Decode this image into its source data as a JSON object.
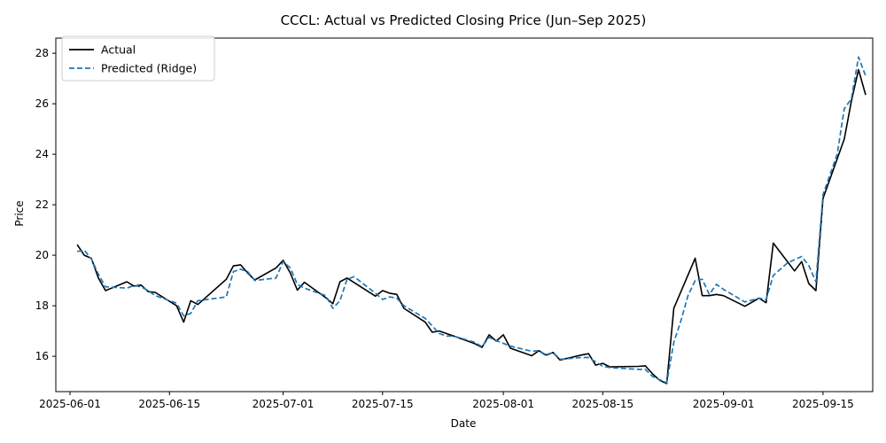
{
  "chart_data": {
    "type": "line",
    "title": "CCCL: Actual vs Predicted Closing Price (Jun–Sep 2025)",
    "xlabel": "Date",
    "ylabel": "Price",
    "xlim": [
      "2025-05-30",
      "2025-09-22"
    ],
    "ylim": [
      14.6,
      28.6
    ],
    "x_ticks": [
      "2025-06-01",
      "2025-06-15",
      "2025-07-01",
      "2025-07-15",
      "2025-08-01",
      "2025-08-15",
      "2025-09-01",
      "2025-09-15"
    ],
    "y_ticks": [
      16,
      18,
      20,
      22,
      24,
      26,
      28
    ],
    "grid": false,
    "legend_position": "top-left",
    "series": [
      {
        "name": "Actual",
        "color": "#000000",
        "style": "solid",
        "points": [
          [
            "2025-06-02",
            20.42
          ],
          [
            "2025-06-03",
            20.0
          ],
          [
            "2025-06-04",
            19.88
          ],
          [
            "2025-06-05",
            19.1
          ],
          [
            "2025-06-06",
            18.6
          ],
          [
            "2025-06-09",
            18.95
          ],
          [
            "2025-06-10",
            18.78
          ],
          [
            "2025-06-11",
            18.82
          ],
          [
            "2025-06-12",
            18.56
          ],
          [
            "2025-06-13",
            18.53
          ],
          [
            "2025-06-16",
            18.0
          ],
          [
            "2025-06-17",
            17.35
          ],
          [
            "2025-06-18",
            18.2
          ],
          [
            "2025-06-19",
            18.05
          ],
          [
            "2025-06-23",
            19.05
          ],
          [
            "2025-06-24",
            19.58
          ],
          [
            "2025-06-25",
            19.62
          ],
          [
            "2025-06-26",
            19.3
          ],
          [
            "2025-06-27",
            19.02
          ],
          [
            "2025-06-30",
            19.5
          ],
          [
            "2025-07-01",
            19.8
          ],
          [
            "2025-07-02",
            19.3
          ],
          [
            "2025-07-03",
            18.62
          ],
          [
            "2025-07-04",
            18.93
          ],
          [
            "2025-07-07",
            18.32
          ],
          [
            "2025-07-08",
            18.08
          ],
          [
            "2025-07-09",
            18.95
          ],
          [
            "2025-07-10",
            19.1
          ],
          [
            "2025-07-14",
            18.38
          ],
          [
            "2025-07-15",
            18.6
          ],
          [
            "2025-07-16",
            18.5
          ],
          [
            "2025-07-17",
            18.45
          ],
          [
            "2025-07-18",
            17.9
          ],
          [
            "2025-07-21",
            17.35
          ],
          [
            "2025-07-22",
            16.95
          ],
          [
            "2025-07-23",
            17.0
          ],
          [
            "2025-07-24",
            16.9
          ],
          [
            "2025-07-25",
            16.8
          ],
          [
            "2025-07-28",
            16.5
          ],
          [
            "2025-07-29",
            16.35
          ],
          [
            "2025-07-30",
            16.85
          ],
          [
            "2025-07-31",
            16.6
          ],
          [
            "2025-08-01",
            16.85
          ],
          [
            "2025-08-02",
            16.32
          ],
          [
            "2025-08-05",
            16.02
          ],
          [
            "2025-08-06",
            16.22
          ],
          [
            "2025-08-07",
            16.05
          ],
          [
            "2025-08-08",
            16.15
          ],
          [
            "2025-08-09",
            15.85
          ],
          [
            "2025-08-12",
            16.05
          ],
          [
            "2025-08-13",
            16.1
          ],
          [
            "2025-08-14",
            15.65
          ],
          [
            "2025-08-15",
            15.72
          ],
          [
            "2025-08-16",
            15.58
          ],
          [
            "2025-08-20",
            15.6
          ],
          [
            "2025-08-21",
            15.62
          ],
          [
            "2025-08-22",
            15.3
          ],
          [
            "2025-08-23",
            15.05
          ],
          [
            "2025-08-24",
            14.92
          ],
          [
            "2025-08-25",
            17.9
          ],
          [
            "2025-08-28",
            19.88
          ],
          [
            "2025-08-29",
            18.4
          ],
          [
            "2025-08-30",
            18.4
          ],
          [
            "2025-08-31",
            18.45
          ],
          [
            "2025-09-01",
            18.4
          ],
          [
            "2025-09-04",
            17.98
          ],
          [
            "2025-09-06",
            18.3
          ],
          [
            "2025-09-07",
            18.12
          ],
          [
            "2025-09-08",
            20.48
          ],
          [
            "2025-09-11",
            19.38
          ],
          [
            "2025-09-12",
            19.75
          ],
          [
            "2025-09-13",
            18.88
          ],
          [
            "2025-09-14",
            18.6
          ],
          [
            "2025-09-15",
            22.25
          ],
          [
            "2025-09-18",
            24.6
          ],
          [
            "2025-09-19",
            26.1
          ],
          [
            "2025-09-20",
            27.35
          ],
          [
            "2025-09-21",
            26.35
          ]
        ]
      },
      {
        "name": "Predicted (Ridge)",
        "color": "#1f77b4",
        "style": "dashed",
        "points": [
          [
            "2025-06-02",
            20.15
          ],
          [
            "2025-06-03",
            20.2
          ],
          [
            "2025-06-04",
            19.85
          ],
          [
            "2025-06-05",
            19.25
          ],
          [
            "2025-06-06",
            18.75
          ],
          [
            "2025-06-09",
            18.7
          ],
          [
            "2025-06-10",
            18.8
          ],
          [
            "2025-06-11",
            18.75
          ],
          [
            "2025-06-12",
            18.6
          ],
          [
            "2025-06-13",
            18.4
          ],
          [
            "2025-06-16",
            18.1
          ],
          [
            "2025-06-17",
            17.6
          ],
          [
            "2025-06-18",
            17.7
          ],
          [
            "2025-06-19",
            18.2
          ],
          [
            "2025-06-23",
            18.35
          ],
          [
            "2025-06-24",
            19.35
          ],
          [
            "2025-06-25",
            19.45
          ],
          [
            "2025-06-26",
            19.35
          ],
          [
            "2025-06-27",
            19.0
          ],
          [
            "2025-06-30",
            19.1
          ],
          [
            "2025-07-01",
            19.75
          ],
          [
            "2025-07-02",
            19.5
          ],
          [
            "2025-07-03",
            18.85
          ],
          [
            "2025-07-04",
            18.7
          ],
          [
            "2025-07-07",
            18.4
          ],
          [
            "2025-07-08",
            17.9
          ],
          [
            "2025-07-09",
            18.2
          ],
          [
            "2025-07-10",
            19.05
          ],
          [
            "2025-07-11",
            19.15
          ],
          [
            "2025-07-14",
            18.5
          ],
          [
            "2025-07-15",
            18.25
          ],
          [
            "2025-07-16",
            18.35
          ],
          [
            "2025-07-17",
            18.3
          ],
          [
            "2025-07-18",
            18.0
          ],
          [
            "2025-07-21",
            17.5
          ],
          [
            "2025-07-22",
            17.2
          ],
          [
            "2025-07-23",
            16.9
          ],
          [
            "2025-07-24",
            16.8
          ],
          [
            "2025-07-25",
            16.8
          ],
          [
            "2025-07-28",
            16.55
          ],
          [
            "2025-07-29",
            16.38
          ],
          [
            "2025-07-30",
            16.75
          ],
          [
            "2025-07-31",
            16.62
          ],
          [
            "2025-08-02",
            16.4
          ],
          [
            "2025-08-05",
            16.2
          ],
          [
            "2025-08-06",
            16.22
          ],
          [
            "2025-08-07",
            16.02
          ],
          [
            "2025-08-08",
            16.15
          ],
          [
            "2025-08-09",
            15.88
          ],
          [
            "2025-08-12",
            15.95
          ],
          [
            "2025-08-13",
            15.95
          ],
          [
            "2025-08-14",
            15.78
          ],
          [
            "2025-08-15",
            15.6
          ],
          [
            "2025-08-16",
            15.55
          ],
          [
            "2025-08-20",
            15.48
          ],
          [
            "2025-08-21",
            15.48
          ],
          [
            "2025-08-22",
            15.2
          ],
          [
            "2025-08-24",
            14.95
          ],
          [
            "2025-08-25",
            16.55
          ],
          [
            "2025-08-26",
            17.4
          ],
          [
            "2025-08-27",
            18.4
          ],
          [
            "2025-08-28",
            19.0
          ],
          [
            "2025-08-29",
            19.05
          ],
          [
            "2025-08-30",
            18.45
          ],
          [
            "2025-08-31",
            18.85
          ],
          [
            "2025-09-01",
            18.65
          ],
          [
            "2025-09-04",
            18.15
          ],
          [
            "2025-09-06",
            18.3
          ],
          [
            "2025-09-07",
            18.25
          ],
          [
            "2025-09-08",
            19.2
          ],
          [
            "2025-09-10",
            19.7
          ],
          [
            "2025-09-12",
            19.95
          ],
          [
            "2025-09-13",
            19.6
          ],
          [
            "2025-09-14",
            18.95
          ],
          [
            "2025-09-15",
            22.4
          ],
          [
            "2025-09-17",
            24.0
          ],
          [
            "2025-09-18",
            25.8
          ],
          [
            "2025-09-19",
            26.2
          ],
          [
            "2025-09-20",
            27.85
          ],
          [
            "2025-09-21",
            27.1
          ]
        ]
      }
    ]
  }
}
